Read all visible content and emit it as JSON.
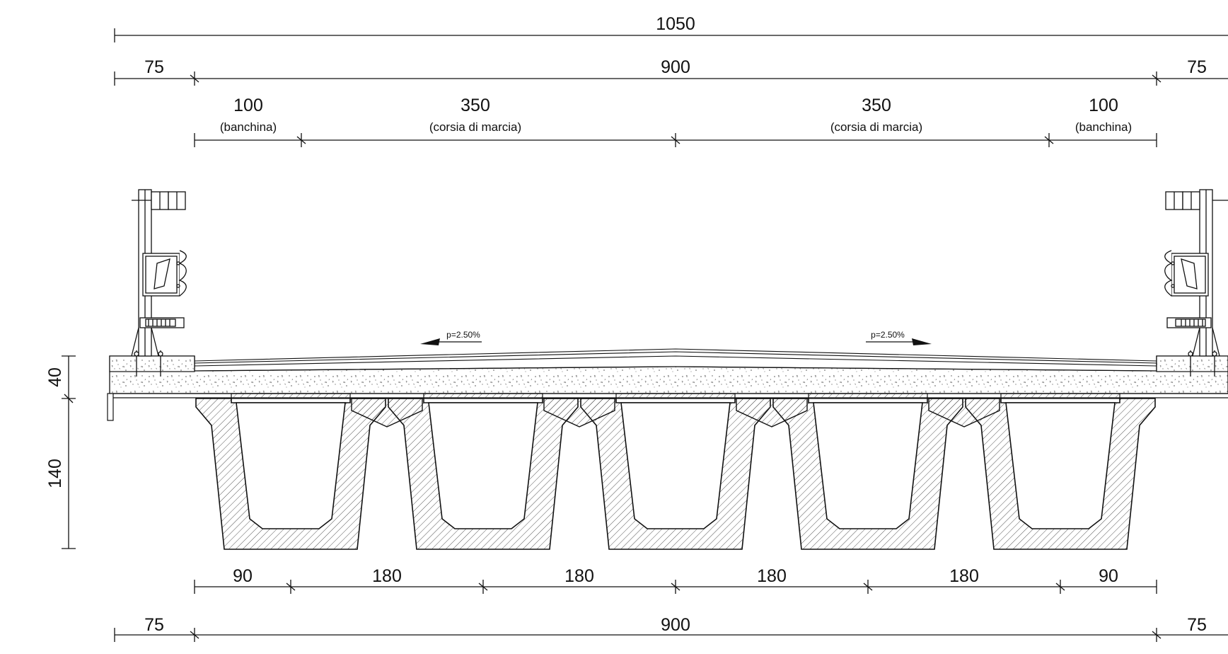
{
  "dimensions": {
    "total_width": "1050",
    "left_cantilever_top": "75",
    "carriageway_top": "900",
    "right_cantilever_top": "75",
    "left_shoulder": "100",
    "left_shoulder_note": "(banchina)",
    "left_lane": "350",
    "left_lane_note": "(corsia di marcia)",
    "right_lane": "350",
    "right_lane_note": "(corsia di marcia)",
    "right_shoulder": "100",
    "right_shoulder_note": "(banchina)",
    "slab_thickness": "40",
    "beam_depth": "140",
    "bottom_spacings": [
      "90",
      "180",
      "180",
      "180",
      "180",
      "90"
    ],
    "left_cantilever_bottom": "75",
    "carriageway_bottom": "900",
    "right_cantilever_bottom": "75"
  },
  "slopes": {
    "left": "p=2.50%",
    "right": "p=2.50%"
  },
  "colors": {
    "line": "#111111",
    "hatch": "#444444",
    "background": "#ffffff"
  }
}
